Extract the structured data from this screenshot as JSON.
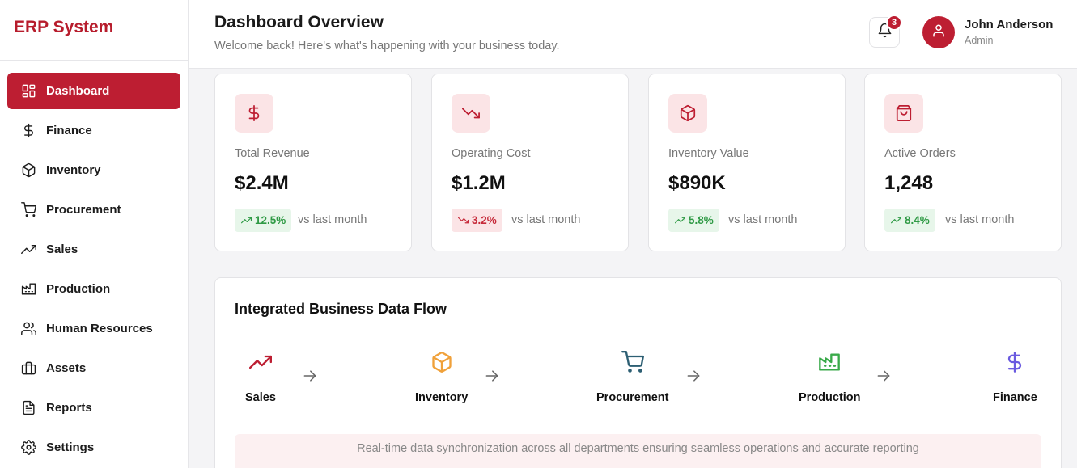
{
  "app": {
    "brand": "ERP System"
  },
  "sidebar": {
    "items": [
      {
        "label": "Dashboard",
        "icon": "dashboard-grid-icon",
        "active": true
      },
      {
        "label": "Finance",
        "icon": "dollar-icon"
      },
      {
        "label": "Inventory",
        "icon": "box-icon"
      },
      {
        "label": "Procurement",
        "icon": "cart-icon"
      },
      {
        "label": "Sales",
        "icon": "trending-up-icon"
      },
      {
        "label": "Production",
        "icon": "factory-icon"
      },
      {
        "label": "Human Resources",
        "icon": "users-icon"
      },
      {
        "label": "Assets",
        "icon": "briefcase-icon"
      },
      {
        "label": "Reports",
        "icon": "file-text-icon"
      },
      {
        "label": "Settings",
        "icon": "gear-icon"
      }
    ]
  },
  "header": {
    "title": "Dashboard Overview",
    "subtitle": "Welcome back! Here's what's happening with your business today.",
    "notifications_count": "3",
    "user": {
      "name": "John Anderson",
      "role": "Admin"
    }
  },
  "kpis": [
    {
      "label": "Total Revenue",
      "value": "$2.4M",
      "change": "12.5%",
      "direction": "up",
      "vs": "vs last month",
      "icon": "dollar-icon"
    },
    {
      "label": "Operating Cost",
      "value": "$1.2M",
      "change": "3.2%",
      "direction": "down",
      "vs": "vs last month",
      "icon": "trending-down-icon"
    },
    {
      "label": "Inventory Value",
      "value": "$890K",
      "change": "5.8%",
      "direction": "up",
      "vs": "vs last month",
      "icon": "box-icon"
    },
    {
      "label": "Active Orders",
      "value": "1,248",
      "change": "8.4%",
      "direction": "up",
      "vs": "vs last month",
      "icon": "shopping-bag-icon"
    }
  ],
  "flow": {
    "title": "Integrated Business Data Flow",
    "steps": [
      {
        "label": "Sales",
        "icon": "trending-up-icon",
        "color": "#bd1e32"
      },
      {
        "label": "Inventory",
        "icon": "box-icon",
        "color": "#f0a13a"
      },
      {
        "label": "Procurement",
        "icon": "cart-icon",
        "color": "#2d5f73"
      },
      {
        "label": "Production",
        "icon": "factory-icon",
        "color": "#3aaa4a"
      },
      {
        "label": "Finance",
        "icon": "dollar-icon",
        "color": "#6a5ae0"
      }
    ],
    "note": "Real-time data synchronization across all departments ensuring seamless operations and accurate reporting"
  },
  "colors": {
    "accent": "#bd1e32",
    "positive": "#2f9a45",
    "negative": "#c62a3a"
  }
}
